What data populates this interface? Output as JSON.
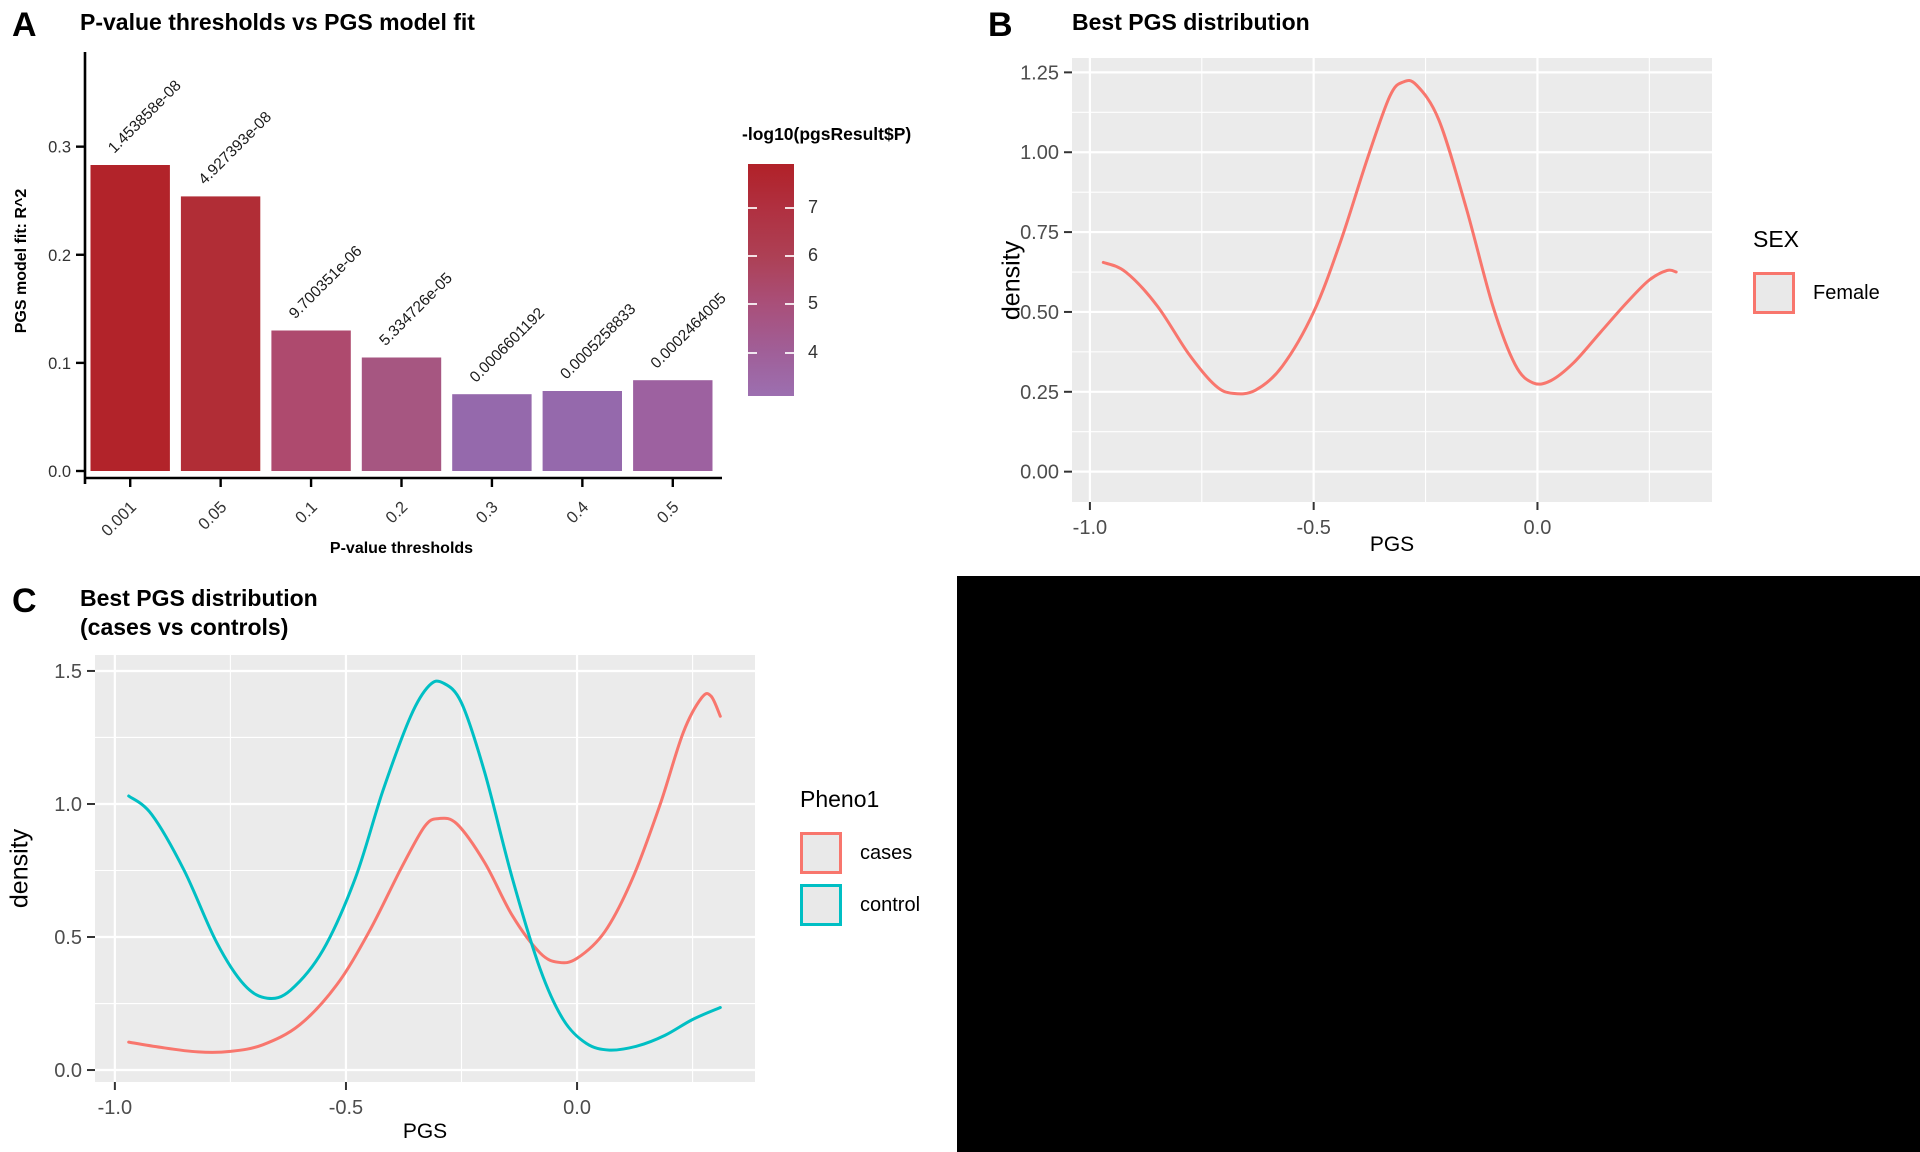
{
  "panels": {
    "a": {
      "letter": "A"
    },
    "b": {
      "letter": "B",
      "legend_title": "SEX",
      "legend_items": [
        {
          "label": "Female",
          "color": "#f8766d"
        }
      ]
    },
    "c": {
      "letter": "C",
      "legend_title": "Pheno1",
      "legend_items": [
        {
          "label": "cases",
          "color": "#f8766d"
        },
        {
          "label": "control",
          "color": "#00bfc4"
        }
      ]
    },
    "empty": {
      "background": "#000000"
    }
  },
  "chart_data": [
    {
      "id": "A",
      "type": "bar",
      "title": "P-value thresholds vs PGS model fit",
      "xlabel": "P-value thresholds",
      "ylabel": "PGS model fit: R^2",
      "categories": [
        "0.001",
        "0.05",
        "0.1",
        "0.2",
        "0.3",
        "0.4",
        "0.5"
      ],
      "values": [
        0.283,
        0.254,
        0.13,
        0.105,
        0.071,
        0.074,
        0.084
      ],
      "bar_labels": [
        "1.453858e-08",
        "4.927393e-08",
        "9.700351e-06",
        "5.334726e-05",
        "0.0006601192",
        "0.0005258833",
        "0.0002464005"
      ],
      "bar_neg_log10_p": [
        7.84,
        7.31,
        5.01,
        4.27,
        3.18,
        3.28,
        3.61
      ],
      "bar_colors": [
        "#b2232a",
        "#b12d36",
        "#ae4a6e",
        "#a65681",
        "#9569ac",
        "#9569ac",
        "#9d61a0"
      ],
      "yticks": [
        0,
        0.1,
        0.2,
        0.3
      ],
      "ytick_labels": [
        "0.0",
        "0.1",
        "0.2",
        "0.3"
      ],
      "ylim": [
        0,
        0.382
      ],
      "grid": false,
      "legend": {
        "title": "-log10(pgsResult$P)",
        "ticks": [
          4,
          5,
          6,
          7
        ],
        "range": [
          3.1,
          7.9
        ],
        "gradient_stops": [
          [
            "#9c6fb0",
            0
          ],
          [
            "#a05f98",
            19
          ],
          [
            "#a94f79",
            40
          ],
          [
            "#ad4055",
            60
          ],
          [
            "#b03040",
            81
          ],
          [
            "#b12128",
            100
          ]
        ]
      }
    },
    {
      "id": "B",
      "type": "line",
      "title": "Best PGS distribution",
      "xlabel": "PGS",
      "ylabel": "density",
      "xticks": [
        -1,
        -0.5,
        0
      ],
      "xtick_labels": [
        "-1.0",
        "-0.5",
        "0.0"
      ],
      "yticks": [
        0,
        0.25,
        0.5,
        0.75,
        1,
        1.25
      ],
      "ytick_labels": [
        "0.00",
        "0.25",
        "0.50",
        "0.75",
        "1.00",
        "1.25"
      ],
      "xlim": [
        -1.04,
        0.39
      ],
      "ylim": [
        -0.095,
        1.295
      ],
      "grid": true,
      "legend_position": "right",
      "series": [
        {
          "name": "Female",
          "color": "#f8766d",
          "x": [
            -0.97,
            -0.92,
            -0.85,
            -0.78,
            -0.72,
            -0.68,
            -0.63,
            -0.57,
            -0.5,
            -0.44,
            -0.38,
            -0.33,
            -0.3,
            -0.27,
            -0.22,
            -0.16,
            -0.1,
            -0.05,
            -0.01,
            0.03,
            0.08,
            0.14,
            0.2,
            0.25,
            0.29,
            0.31
          ],
          "y": [
            0.655,
            0.625,
            0.52,
            0.37,
            0.27,
            0.245,
            0.255,
            0.33,
            0.5,
            0.72,
            0.98,
            1.175,
            1.22,
            1.21,
            1.1,
            0.83,
            0.52,
            0.335,
            0.278,
            0.285,
            0.34,
            0.435,
            0.53,
            0.6,
            0.63,
            0.625
          ]
        }
      ]
    },
    {
      "id": "C",
      "type": "line",
      "title": "Best PGS distribution\n(cases vs controls)",
      "xlabel": "PGS",
      "ylabel": "density",
      "xticks": [
        -1,
        -0.5,
        0
      ],
      "xtick_labels": [
        "-1.0",
        "-0.5",
        "0.0"
      ],
      "yticks": [
        0,
        0.5,
        1,
        1.5
      ],
      "ytick_labels": [
        "0.0",
        "0.5",
        "1.0",
        "1.5"
      ],
      "xlim": [
        -1.043,
        0.385
      ],
      "ylim": [
        -0.045,
        1.56
      ],
      "grid": true,
      "legend_position": "right",
      "series": [
        {
          "name": "cases",
          "color": "#f8766d",
          "x": [
            -0.97,
            -0.9,
            -0.82,
            -0.75,
            -0.68,
            -0.6,
            -0.52,
            -0.45,
            -0.38,
            -0.33,
            -0.3,
            -0.26,
            -0.2,
            -0.14,
            -0.08,
            -0.04,
            0.0,
            0.06,
            0.12,
            0.18,
            0.23,
            0.27,
            0.29,
            0.31
          ],
          "y": [
            0.105,
            0.085,
            0.068,
            0.07,
            0.095,
            0.17,
            0.32,
            0.52,
            0.76,
            0.915,
            0.945,
            0.925,
            0.78,
            0.58,
            0.44,
            0.405,
            0.42,
            0.52,
            0.72,
            1.0,
            1.27,
            1.4,
            1.405,
            1.33
          ]
        },
        {
          "name": "control",
          "color": "#00bfc4",
          "x": [
            -0.97,
            -0.92,
            -0.85,
            -0.78,
            -0.72,
            -0.67,
            -0.62,
            -0.55,
            -0.48,
            -0.42,
            -0.36,
            -0.32,
            -0.29,
            -0.25,
            -0.2,
            -0.14,
            -0.08,
            -0.03,
            0.02,
            0.07,
            0.13,
            0.19,
            0.25,
            0.31
          ],
          "y": [
            1.03,
            0.96,
            0.75,
            0.48,
            0.32,
            0.27,
            0.3,
            0.45,
            0.72,
            1.05,
            1.33,
            1.445,
            1.455,
            1.38,
            1.12,
            0.72,
            0.38,
            0.19,
            0.1,
            0.075,
            0.09,
            0.13,
            0.19,
            0.235
          ]
        }
      ]
    }
  ]
}
